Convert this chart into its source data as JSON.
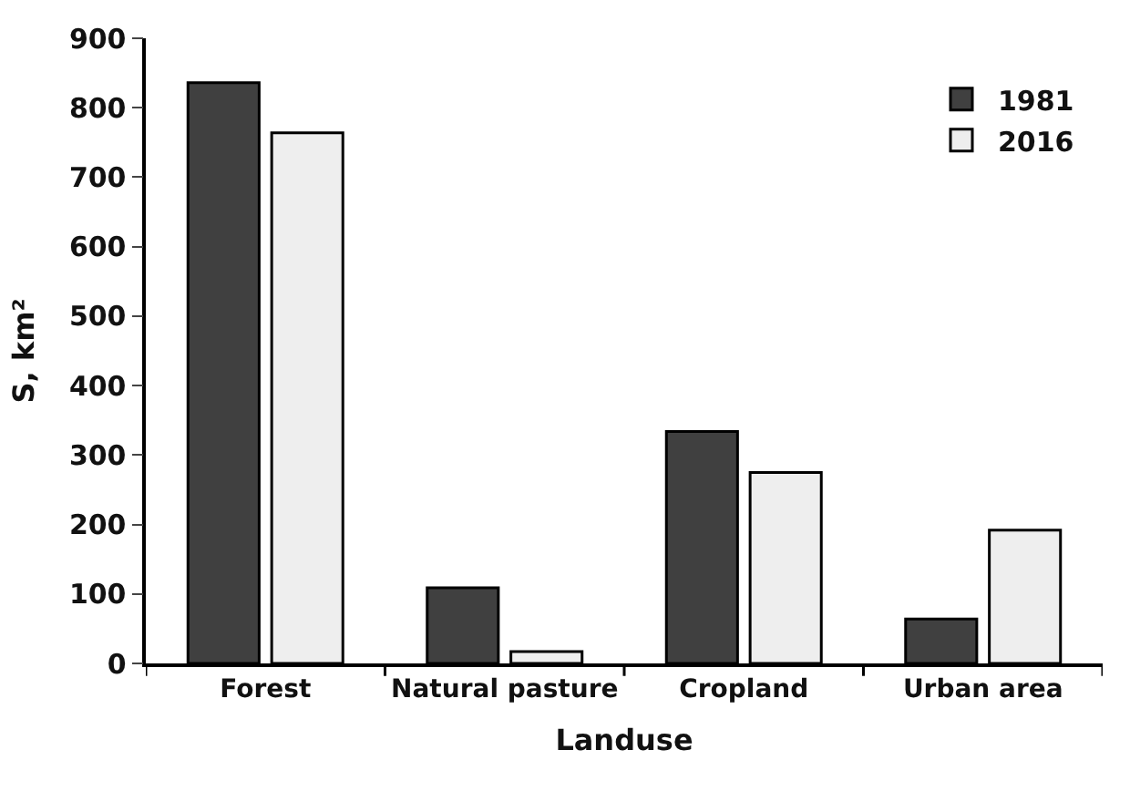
{
  "chart_data": {
    "type": "bar",
    "xlabel": "Landuse",
    "ylabel": "S, km²",
    "categories": [
      "Forest",
      "Natural pasture",
      "Cropland",
      "Urban area"
    ],
    "series": [
      {
        "name": "1981",
        "color": "#404040",
        "values": [
          836,
          109,
          334,
          64
        ]
      },
      {
        "name": "2016",
        "color": "#eeeeee",
        "values": [
          764,
          17,
          275,
          192
        ]
      }
    ],
    "ylim": [
      0,
      900
    ],
    "yticks": [
      0,
      100,
      200,
      300,
      400,
      500,
      600,
      700,
      800,
      900
    ],
    "legend": "top right"
  }
}
